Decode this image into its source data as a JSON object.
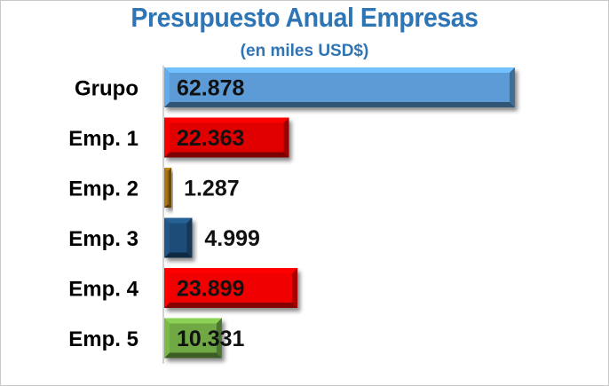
{
  "chart_data": {
    "type": "bar",
    "orientation": "horizontal",
    "title": "Presupuesto Anual Empresas",
    "subtitle": "(en miles USD$)",
    "categories": [
      "Grupo",
      "Emp. 1",
      "Emp. 2",
      "Emp. 3",
      "Emp. 4",
      "Emp. 5"
    ],
    "values": [
      62878,
      22363,
      1287,
      4999,
      23899,
      10331
    ],
    "value_labels": [
      "62.878",
      "22.363",
      "1.287",
      "4.999",
      "23.899",
      "10.331"
    ],
    "colors": [
      "#5b9bd5",
      "#e00000",
      "#9c6a0c",
      "#1f4e79",
      "#f00000",
      "#70a845"
    ],
    "xlim": [
      0,
      62878
    ],
    "grid": false,
    "legend": "none"
  }
}
